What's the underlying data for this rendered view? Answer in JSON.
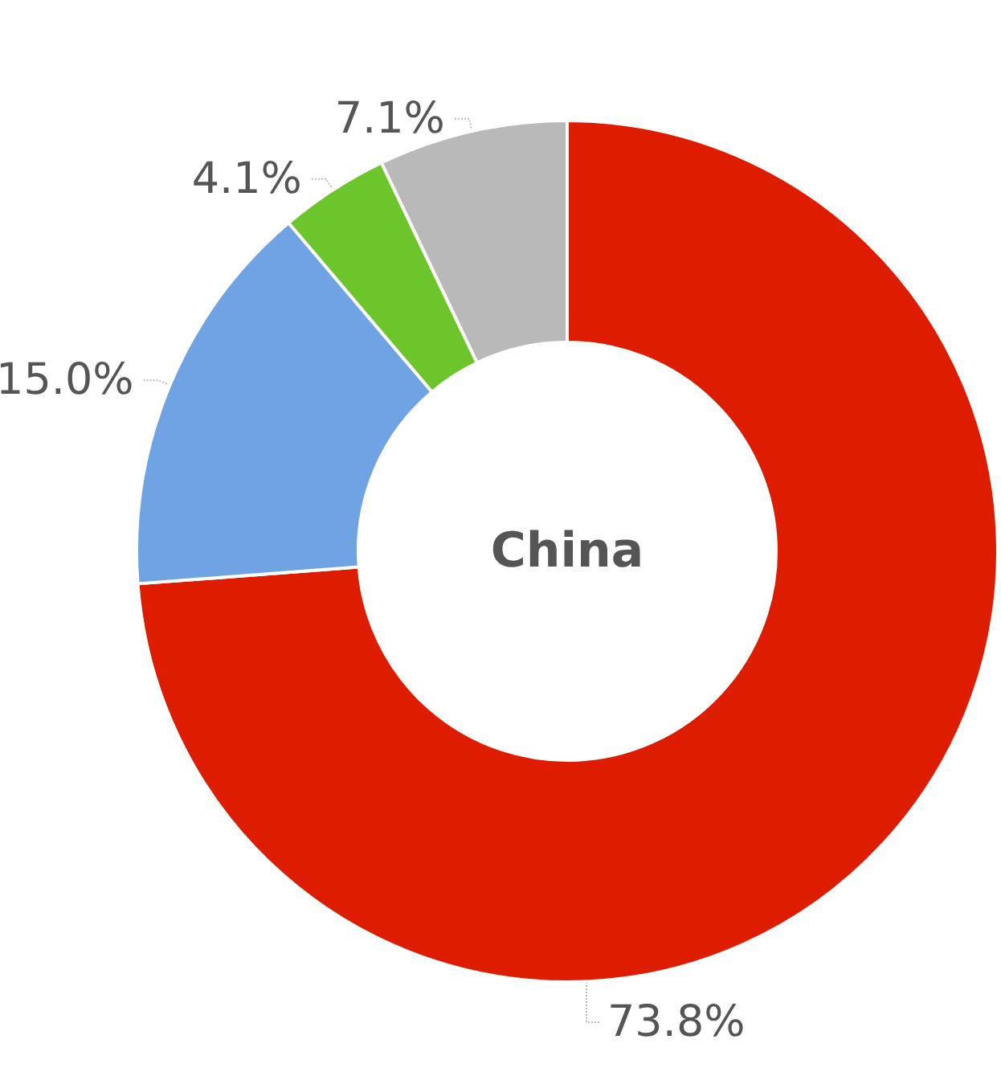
{
  "chart_data": {
    "type": "donut",
    "title": "China",
    "categories": [
      null,
      null,
      null,
      null
    ],
    "values": [
      73.8,
      15.0,
      4.1,
      7.1
    ],
    "value_labels": [
      "73.8%",
      "15.0%",
      "4.1%",
      "7.1%"
    ],
    "colors": [
      "#dd1c00",
      "#6fa3e3",
      "#6cc62b",
      "#b9b9b9"
    ]
  }
}
